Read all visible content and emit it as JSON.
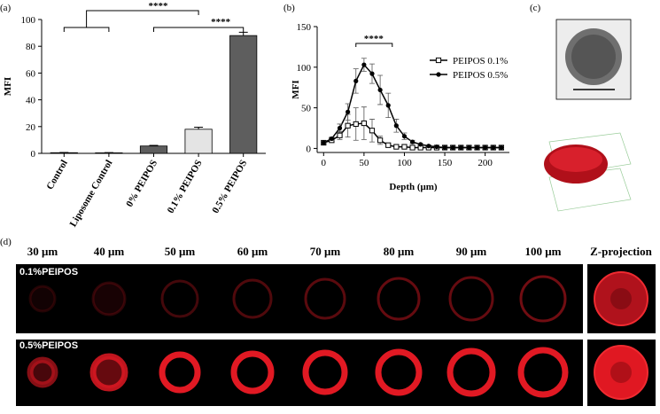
{
  "panels": [
    "(a)",
    "(b)",
    "(c)",
    "(d)"
  ],
  "chart_data": [
    {
      "type": "bar",
      "categories": [
        "Control",
        "Liposome Control",
        "0% PEIPOS",
        "0.1% PEIPOS",
        "0.5% PEIPOS"
      ],
      "values": [
        0.5,
        0.4,
        5.5,
        18,
        88
      ],
      "errors": [
        0.2,
        0.2,
        0.5,
        1.5,
        2.5
      ],
      "colors": [
        "#ffffff",
        "#ffffff",
        "#5e5e5e",
        "#e4e4e4",
        "#5e5e5e"
      ],
      "y_label": "MFI",
      "ylim": [
        0,
        100
      ],
      "yticks": [
        0,
        20,
        40,
        60,
        80,
        100
      ],
      "annotations": [
        "****",
        "****"
      ]
    },
    {
      "type": "line",
      "x": [
        0,
        10,
        20,
        30,
        40,
        50,
        60,
        70,
        80,
        90,
        100,
        110,
        120,
        130,
        140,
        150,
        160,
        170,
        180,
        190,
        200,
        210,
        220
      ],
      "series": [
        {
          "name": "PEIPOS 0.1%",
          "color": "#000000",
          "marker": "square-open",
          "values": [
            7,
            10,
            16,
            28,
            30,
            31,
            22,
            10,
            4,
            2,
            2,
            1,
            1,
            1,
            1,
            1,
            1,
            1,
            1,
            1,
            1,
            1,
            1
          ],
          "errors": [
            1,
            2,
            5,
            14,
            20,
            20,
            14,
            5,
            2,
            1,
            1,
            1,
            1,
            1,
            1,
            1,
            1,
            1,
            1,
            1,
            1,
            1,
            1
          ]
        },
        {
          "name": "PEIPOS 0.5%",
          "color": "#000000",
          "marker": "circle",
          "values": [
            7,
            12,
            25,
            45,
            83,
            103,
            92,
            72,
            53,
            28,
            15,
            8,
            5,
            3,
            2,
            1,
            1,
            1,
            1,
            1,
            1,
            1,
            1
          ],
          "errors": [
            1,
            2,
            5,
            10,
            15,
            8,
            12,
            18,
            15,
            8,
            4,
            2,
            1,
            1,
            1,
            1,
            1,
            1,
            1,
            1,
            1,
            1,
            1
          ]
        }
      ],
      "x_label": "Depth (μm)",
      "y_label": "MFI",
      "xlim": [
        -8,
        230
      ],
      "xticks": [
        0,
        50,
        100,
        150,
        200
      ],
      "ylim": [
        -5,
        150
      ],
      "yticks": [
        0,
        50,
        100,
        150
      ],
      "annotation": "****",
      "legend": "upper right"
    }
  ],
  "microscopy": {
    "columns": [
      "30 μm",
      "40 μm",
      "50 μm",
      "60 μm",
      "70 μm",
      "80 μm",
      "90 μm",
      "100 μm",
      "Z-projection"
    ],
    "rows": [
      "0.1%PEIPOS",
      "0.5%PEIPOS"
    ]
  }
}
